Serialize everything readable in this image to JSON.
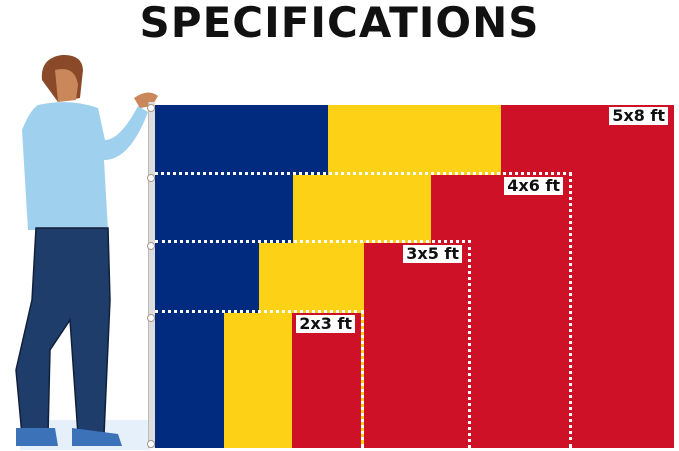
{
  "title": "SPECIFICATIONS",
  "colors": {
    "blue": "#002b7f",
    "yellow": "#fcd116",
    "red": "#ce1126"
  },
  "sizes": [
    {
      "label": "5x8 ft"
    },
    {
      "label": "4x6 ft"
    },
    {
      "label": "3x5 ft"
    },
    {
      "label": "2x3 ft"
    }
  ]
}
